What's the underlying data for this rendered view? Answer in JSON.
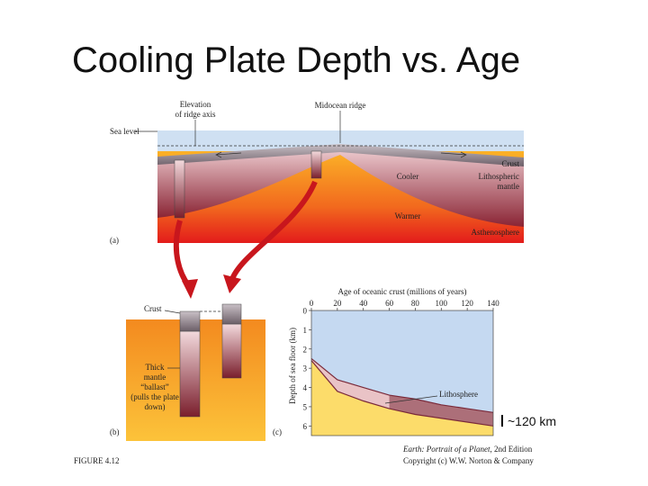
{
  "title": "Cooling Plate Depth vs. Age",
  "panel_a": {
    "elevation_label": [
      "Elevation",
      "of ridge axis"
    ],
    "ridge_label": "Midocean ridge",
    "sea_level": "Sea level",
    "crust": "Crust",
    "lithospheric_mantle": [
      "Lithospheric",
      "mantle"
    ],
    "cooler": "Cooler",
    "warmer": "Warmer",
    "asthenosphere": "Asthenosphere",
    "panel_label": "(a)"
  },
  "panel_b": {
    "crust": "Crust",
    "ballast": [
      "Thick",
      "mantle",
      "“ballast”",
      "(pulls the plate",
      "down)"
    ],
    "panel_label": "(b)"
  },
  "chart_data": {
    "type": "area",
    "xlabel": "Age of oceanic crust (millions of years)",
    "ylabel": "Depth of sea floor (km)",
    "x": [
      0,
      20,
      40,
      60,
      80,
      100,
      120,
      140
    ],
    "series": [
      {
        "color": "#7a2a3a",
        "values": [
          2.5,
          3.6,
          4.0,
          4.4,
          4.6,
          4.9,
          5.1,
          5.3
        ]
      },
      {
        "color": "#7a2a3a",
        "values": [
          2.6,
          4.2,
          4.7,
          5.1,
          5.4,
          5.6,
          5.8,
          6.0
        ]
      }
    ],
    "xlim": [
      0,
      140
    ],
    "xticks": [
      0,
      20,
      40,
      60,
      80,
      100,
      120,
      140
    ],
    "ylim": [
      0,
      6.5
    ],
    "yticks": [
      0,
      1,
      2,
      3,
      4,
      5,
      6
    ],
    "y_inverted": true,
    "annotation": "Lithosphere",
    "panel_label": "(c)",
    "scale_note": "~120 km"
  },
  "figure_label": "FIGURE 4.12",
  "source": {
    "book": "Earth: Portrait of a Planet",
    "edition": ", 2nd Edition",
    "copyright": "Copyright (c) W.W. Norton & Company"
  }
}
